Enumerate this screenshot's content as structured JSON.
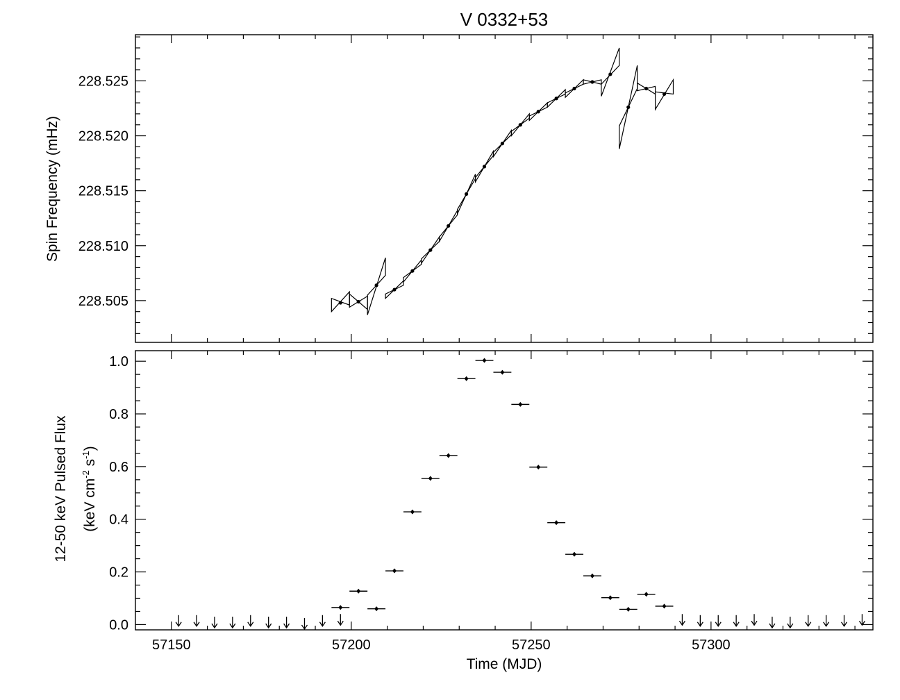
{
  "title": "V 0332+53",
  "chart_data": [
    {
      "type": "line",
      "panel": "top",
      "ylabel": "Spin Frequency (mHz)",
      "xlim": [
        57140,
        57345
      ],
      "ylim": [
        228.5012,
        228.5292
      ],
      "y_ticks": [
        228.505,
        228.51,
        228.515,
        228.52,
        228.525
      ],
      "y_tick_labels": [
        "228.505",
        "228.510",
        "228.515",
        "228.520",
        "228.525"
      ],
      "series": [
        {
          "points": [
            {
              "x": 57197.0,
              "y": 228.5048
            },
            {
              "x": 57202.0,
              "y": 228.5049
            },
            {
              "x": 57207.0,
              "y": 228.5064
            },
            {
              "x": 57212.0,
              "y": 228.506
            },
            {
              "x": 57217.0,
              "y": 228.5077
            },
            {
              "x": 57222.0,
              "y": 228.5096
            },
            {
              "x": 57227.0,
              "y": 228.5118
            },
            {
              "x": 57232.0,
              "y": 228.5147
            },
            {
              "x": 57237.0,
              "y": 228.5172
            },
            {
              "x": 57242.0,
              "y": 228.5193
            },
            {
              "x": 57247.0,
              "y": 228.521
            },
            {
              "x": 57252.0,
              "y": 228.5222
            },
            {
              "x": 57257.0,
              "y": 228.5234
            },
            {
              "x": 57262.0,
              "y": 228.5243
            },
            {
              "x": 57267.0,
              "y": 228.5249
            },
            {
              "x": 57272.0,
              "y": 228.5256
            },
            {
              "x": 57277.0,
              "y": 228.5226
            },
            {
              "x": 57282.0,
              "y": 228.5243
            },
            {
              "x": 57287.0,
              "y": 228.5238
            }
          ],
          "bowties": [
            {
              "x1": 57194.5,
              "x2": 57199.5,
              "ymin1": 228.504,
              "ymax1": 228.5052,
              "ymin2": 228.5046,
              "ymax2": 228.5058
            },
            {
              "x1": 57199.5,
              "x2": 57204.5,
              "ymin1": 228.5044,
              "ymax1": 228.5056,
              "ymin2": 228.5042,
              "ymax2": 228.5054
            },
            {
              "x1": 57204.5,
              "x2": 57209.5,
              "ymin1": 228.5037,
              "ymax1": 228.5055,
              "ymin2": 228.5073,
              "ymax2": 228.5089
            },
            {
              "x1": 57209.5,
              "x2": 57214.5,
              "ymin1": 228.5052,
              "ymax1": 228.5056,
              "ymin2": 228.5064,
              "ymax2": 228.5068
            },
            {
              "x1": 57214.5,
              "x2": 57219.5,
              "ymin1": 228.5067,
              "ymax1": 228.5071,
              "ymin2": 228.5083,
              "ymax2": 228.5087
            },
            {
              "x1": 57219.5,
              "x2": 57224.5,
              "ymin1": 228.5084,
              "ymax1": 228.5088,
              "ymin2": 228.5104,
              "ymax2": 228.5108
            },
            {
              "x1": 57224.5,
              "x2": 57229.5,
              "ymin1": 228.5104,
              "ymax1": 228.5108,
              "ymin2": 228.5128,
              "ymax2": 228.5132
            },
            {
              "x1": 57229.5,
              "x2": 57234.5,
              "ymin1": 228.5129,
              "ymax1": 228.5133,
              "ymin2": 228.5161,
              "ymax2": 228.5165
            },
            {
              "x1": 57234.5,
              "x2": 57239.5,
              "ymin1": 228.5158,
              "ymax1": 228.5162,
              "ymin2": 228.5182,
              "ymax2": 228.5186
            },
            {
              "x1": 57239.5,
              "x2": 57244.5,
              "ymin1": 228.5181,
              "ymax1": 228.5185,
              "ymin2": 228.5201,
              "ymax2": 228.5205
            },
            {
              "x1": 57244.5,
              "x2": 57249.5,
              "ymin1": 228.52,
              "ymax1": 228.5204,
              "ymin2": 228.5216,
              "ymax2": 228.522
            },
            {
              "x1": 57249.5,
              "x2": 57254.5,
              "ymin1": 228.5214,
              "ymax1": 228.5218,
              "ymin2": 228.5226,
              "ymax2": 228.523
            },
            {
              "x1": 57254.5,
              "x2": 57259.5,
              "ymin1": 228.5226,
              "ymax1": 228.523,
              "ymin2": 228.5238,
              "ymax2": 228.5242
            },
            {
              "x1": 57259.5,
              "x2": 57264.5,
              "ymin1": 228.5235,
              "ymax1": 228.5239,
              "ymin2": 228.5247,
              "ymax2": 228.5251
            },
            {
              "x1": 57264.5,
              "x2": 57269.5,
              "ymin1": 228.5247,
              "ymax1": 228.5251,
              "ymin2": 228.5247,
              "ymax2": 228.5251
            },
            {
              "x1": 57269.5,
              "x2": 57274.5,
              "ymin1": 228.5236,
              "ymax1": 228.5247,
              "ymin2": 228.5264,
              "ymax2": 228.528
            },
            {
              "x1": 57274.5,
              "x2": 57279.5,
              "ymin1": 228.5188,
              "ymax1": 228.5209,
              "ymin2": 228.5243,
              "ymax2": 228.5264
            },
            {
              "x1": 57279.5,
              "x2": 57284.5,
              "ymin1": 228.5241,
              "ymax1": 228.5248,
              "ymin2": 228.5238,
              "ymax2": 228.5245
            },
            {
              "x1": 57284.5,
              "x2": 57289.5,
              "ymin1": 228.5224,
              "ymax1": 228.524,
              "ymin2": 228.5238,
              "ymax2": 228.5251
            }
          ]
        }
      ]
    },
    {
      "type": "scatter",
      "panel": "bottom",
      "ylabel": "12-50 keV Pulsed Flux",
      "ylabel_units": {
        "pre": "(keV cm",
        "exp1": "-2",
        "mid": " s",
        "exp2": "-1",
        "post": ")"
      },
      "xlabel": "Time (MJD)",
      "xlim": [
        57140,
        57345
      ],
      "ylim": [
        -0.02,
        1.04
      ],
      "x_ticks": [
        57150,
        57200,
        57250,
        57300
      ],
      "x_tick_labels": [
        "57150",
        "57200",
        "57250",
        "57300"
      ],
      "y_ticks": [
        0.0,
        0.2,
        0.4,
        0.6,
        0.8,
        1.0
      ],
      "y_tick_labels": [
        "0.0",
        "0.2",
        "0.4",
        "0.6",
        "0.8",
        "1.0"
      ],
      "xerr": 2.5,
      "points": [
        {
          "x": 57197,
          "y": 0.065
        },
        {
          "x": 57202,
          "y": 0.127
        },
        {
          "x": 57207,
          "y": 0.06
        },
        {
          "x": 57212,
          "y": 0.204
        },
        {
          "x": 57217,
          "y": 0.428
        },
        {
          "x": 57222,
          "y": 0.555
        },
        {
          "x": 57227,
          "y": 0.642
        },
        {
          "x": 57232,
          "y": 0.934
        },
        {
          "x": 57237,
          "y": 1.003
        },
        {
          "x": 57242,
          "y": 0.958
        },
        {
          "x": 57247,
          "y": 0.836
        },
        {
          "x": 57252,
          "y": 0.598
        },
        {
          "x": 57257,
          "y": 0.387
        },
        {
          "x": 57262,
          "y": 0.267
        },
        {
          "x": 57267,
          "y": 0.185
        },
        {
          "x": 57272,
          "y": 0.102
        },
        {
          "x": 57277,
          "y": 0.058
        },
        {
          "x": 57282,
          "y": 0.115
        },
        {
          "x": 57287,
          "y": 0.07
        }
      ],
      "upper_limits": [
        {
          "x": 57152,
          "y": 0.036
        },
        {
          "x": 57157,
          "y": 0.036
        },
        {
          "x": 57162,
          "y": 0.03
        },
        {
          "x": 57167,
          "y": 0.03
        },
        {
          "x": 57172,
          "y": 0.036
        },
        {
          "x": 57177,
          "y": 0.03
        },
        {
          "x": 57182,
          "y": 0.03
        },
        {
          "x": 57187,
          "y": 0.025
        },
        {
          "x": 57192,
          "y": 0.036
        },
        {
          "x": 57197,
          "y": 0.04
        },
        {
          "x": 57292,
          "y": 0.04
        },
        {
          "x": 57297,
          "y": 0.036
        },
        {
          "x": 57302,
          "y": 0.036
        },
        {
          "x": 57307,
          "y": 0.036
        },
        {
          "x": 57312,
          "y": 0.04
        },
        {
          "x": 57317,
          "y": 0.03
        },
        {
          "x": 57322,
          "y": 0.03
        },
        {
          "x": 57327,
          "y": 0.036
        },
        {
          "x": 57332,
          "y": 0.036
        },
        {
          "x": 57337,
          "y": 0.036
        },
        {
          "x": 57342,
          "y": 0.04
        }
      ]
    }
  ]
}
